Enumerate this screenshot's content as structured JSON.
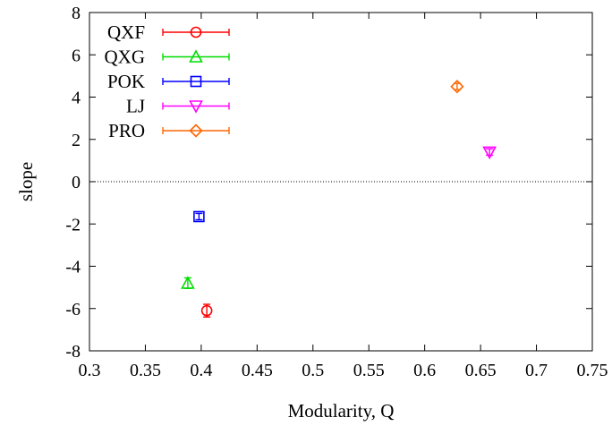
{
  "chart_data": {
    "type": "scatter",
    "title": "",
    "xlabel": "Modularity, Q",
    "ylabel": "slope",
    "xlim": [
      0.3,
      0.75
    ],
    "ylim": [
      -8,
      8
    ],
    "xticks": [
      0.3,
      0.35,
      0.4,
      0.45,
      0.5,
      0.55,
      0.6,
      0.65,
      0.7,
      0.75
    ],
    "xtick_labels": [
      "0.3",
      "0.35",
      "0.4",
      "0.45",
      "0.5",
      "0.55",
      "0.6",
      "0.65",
      "0.7",
      "0.75"
    ],
    "yticks": [
      -8,
      -6,
      -4,
      -2,
      0,
      2,
      4,
      6,
      8
    ],
    "ytick_labels": [
      "-8",
      "-6",
      "-4",
      "-2",
      "0",
      "2",
      "4",
      "6",
      "8"
    ],
    "grid": false,
    "zero_line": true,
    "legend_position": "top-left",
    "series": [
      {
        "name": "QXF",
        "marker": "circle",
        "color": "#ff0000",
        "x": 0.405,
        "y": -6.1,
        "yerr": 0.3
      },
      {
        "name": "QXG",
        "marker": "triangle-up",
        "color": "#00dd00",
        "x": 0.388,
        "y": -4.8,
        "yerr": 0.25
      },
      {
        "name": "POK",
        "marker": "square",
        "color": "#0000ff",
        "x": 0.398,
        "y": -1.65,
        "yerr": 0.15
      },
      {
        "name": "LJ",
        "marker": "triangle-down",
        "color": "#ff00ff",
        "x": 0.658,
        "y": 1.4,
        "yerr": 0.15
      },
      {
        "name": "PRO",
        "marker": "diamond",
        "color": "#ff6600",
        "x": 0.629,
        "y": 4.5,
        "yerr": 0.15
      }
    ]
  }
}
